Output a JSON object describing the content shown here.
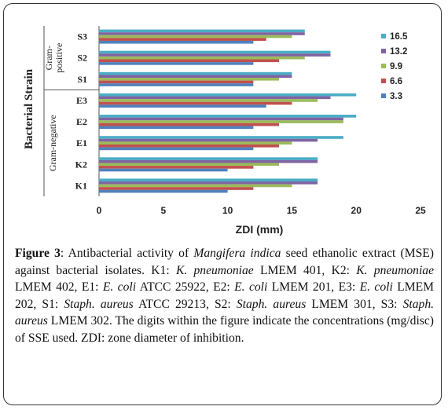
{
  "chart_data": {
    "type": "bar",
    "orientation": "horizontal",
    "categories": [
      "S3",
      "S2",
      "S1",
      "E3",
      "E2",
      "E1",
      "K2",
      "K1"
    ],
    "groups": [
      {
        "label": "Gram-\npositive",
        "categories": [
          "S3",
          "S2",
          "S1"
        ]
      },
      {
        "label": "Gram-negative",
        "categories": [
          "E3",
          "E2",
          "E1",
          "K2",
          "K1"
        ]
      }
    ],
    "series": [
      {
        "name": "16.5",
        "color": "#4bacc6",
        "values": [
          16,
          18,
          15,
          20,
          20,
          19,
          17,
          17
        ]
      },
      {
        "name": "13.2",
        "color": "#8064a2",
        "values": [
          16,
          18,
          15,
          18,
          19,
          17,
          17,
          17
        ]
      },
      {
        "name": "9.9",
        "color": "#9bbb59",
        "values": [
          15,
          16,
          14,
          17,
          19,
          15,
          14,
          15
        ]
      },
      {
        "name": "6.6",
        "color": "#c0504d",
        "values": [
          13,
          14,
          12,
          15,
          14,
          14,
          12,
          12
        ]
      },
      {
        "name": "3.3",
        "color": "#4f81bd",
        "values": [
          12,
          12,
          12,
          13,
          12,
          12,
          10,
          10
        ]
      }
    ],
    "xlabel": "ZDI (mm)",
    "ylabel": "Bacterial Strain",
    "xlim": [
      0,
      25
    ],
    "xticks": [
      0,
      5,
      10,
      15,
      20,
      25
    ],
    "legend": "right",
    "grid": false
  },
  "caption": {
    "figure_label": "Figure 3",
    "segments": [
      {
        "t": ": Antibacterial activity of "
      },
      {
        "t": "Mangifera indica",
        "i": true
      },
      {
        "t": " seed ethanolic extract (MSE) against bacterial isolates. K1: "
      },
      {
        "t": "K. pneumoniae",
        "i": true
      },
      {
        "t": " LMEM 401, K2: "
      },
      {
        "t": "K. pneumoniae",
        "i": true
      },
      {
        "t": " LMEM 402, E1: "
      },
      {
        "t": "E. coli",
        "i": true
      },
      {
        "t": " ATCC 25922, E2: "
      },
      {
        "t": "E. coli",
        "i": true
      },
      {
        "t": " LMEM 201, E3: "
      },
      {
        "t": "E. coli",
        "i": true
      },
      {
        "t": " LMEM 202, S1: "
      },
      {
        "t": "Staph. aureus",
        "i": true
      },
      {
        "t": " ATCC 29213, S2: "
      },
      {
        "t": "Staph. aureus",
        "i": true
      },
      {
        "t": " LMEM 301, S3: "
      },
      {
        "t": "Staph. aureus",
        "i": true
      },
      {
        "t": " LMEM 302. The digits within the figure indicate the concentrations (mg/disc) of SSE used. ZDI: zone diameter of inhibition."
      }
    ]
  }
}
